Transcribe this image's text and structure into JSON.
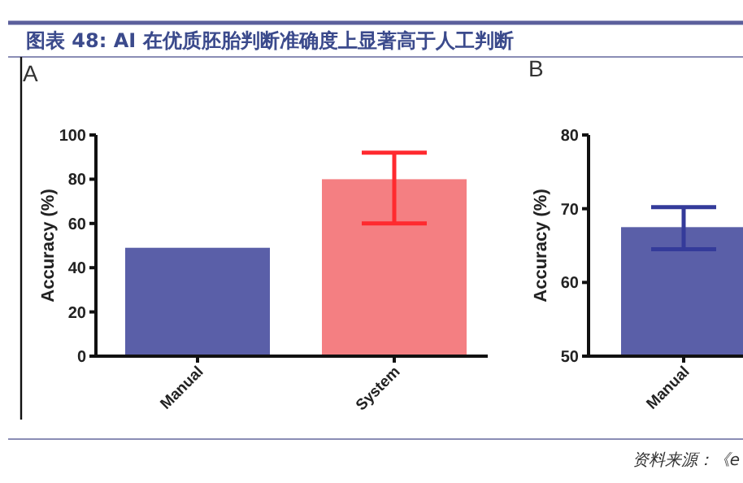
{
  "chart_data": [
    {
      "type": "bar",
      "title": "图表 48: AI 在优质胚胎判断准确度上显著高于人工判断",
      "subtitle": "A",
      "ylabel": "Accuracy (%)",
      "categories": [
        "Manual",
        "System"
      ],
      "values": [
        49,
        80
      ],
      "colors": [
        "#5a5fa8",
        "#f47f82"
      ],
      "errors": [
        null,
        [
          60,
          92
        ]
      ],
      "ylim": [
        0,
        100
      ],
      "yticks": [
        0,
        20,
        40,
        60,
        80,
        100
      ]
    },
    {
      "type": "bar",
      "subtitle": "B",
      "ylabel": "Accuracy (%)",
      "categories": [
        "Manual"
      ],
      "values": [
        67.5
      ],
      "colors": [
        "#5a5fa8"
      ],
      "errors": [
        [
          64.5,
          70.2
        ]
      ],
      "ylim": [
        50,
        80
      ],
      "yticks": [
        50,
        60,
        70,
        80
      ],
      "annotations": [
        "资料来源：《e"
      ]
    }
  ]
}
